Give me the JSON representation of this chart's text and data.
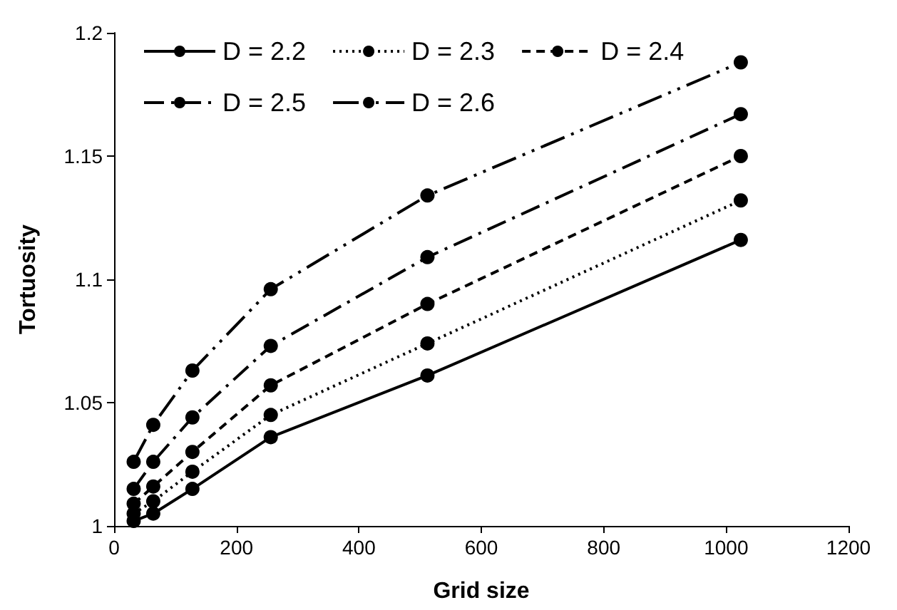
{
  "chart_data": {
    "type": "line",
    "xlabel": "Grid size",
    "ylabel": "Tortuosity",
    "xlim": [
      0,
      1200
    ],
    "xticks": [
      0,
      200,
      400,
      600,
      800,
      1000,
      1200
    ],
    "ylim": [
      1,
      1.2
    ],
    "yticks": [
      1,
      1.05,
      1.1,
      1.15,
      1.2
    ],
    "grid": false,
    "legend": "top left",
    "marker": "circle",
    "x": [
      32,
      64,
      128,
      256,
      512,
      1024
    ],
    "series": [
      {
        "name": "D = 2.2",
        "color": "#000000",
        "line_style": "solid",
        "values": [
          1.002,
          1.005,
          1.015,
          1.036,
          1.061,
          1.116
        ]
      },
      {
        "name": "D = 2.3",
        "color": "#000000",
        "line_style": "dotted",
        "values": [
          1.005,
          1.01,
          1.022,
          1.045,
          1.074,
          1.132
        ]
      },
      {
        "name": "D = 2.4",
        "color": "#000000",
        "line_style": "dashed",
        "values": [
          1.009,
          1.016,
          1.03,
          1.057,
          1.09,
          1.15
        ]
      },
      {
        "name": "D = 2.5",
        "color": "#000000",
        "line_style": "dashdot",
        "values": [
          1.015,
          1.026,
          1.044,
          1.073,
          1.109,
          1.167
        ]
      },
      {
        "name": "D = 2.6",
        "color": "#000000",
        "line_style": "dashdotdot",
        "values": [
          1.026,
          1.041,
          1.063,
          1.096,
          1.134,
          1.188
        ]
      }
    ]
  }
}
